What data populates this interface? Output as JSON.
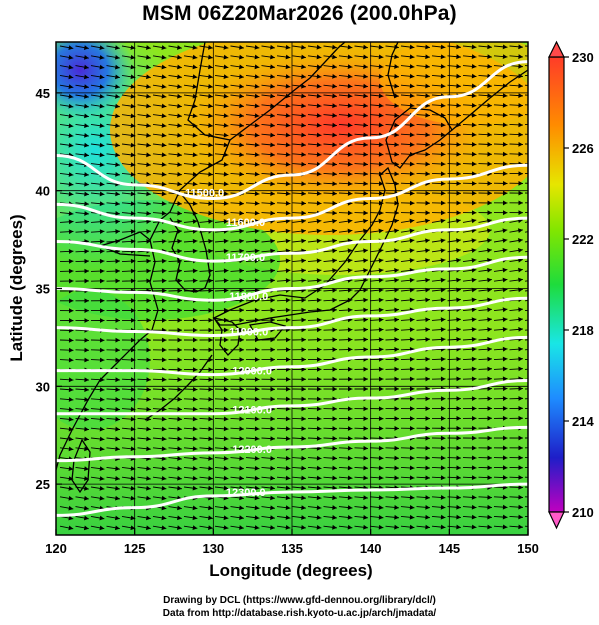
{
  "title": "MSM 06Z20Mar2026 (200.0hPa)",
  "xlabel": "Longitude (degrees)",
  "ylabel": "Latitude  (degrees)",
  "credit_line1": "Drawing by DCL (https://www.gfd-dennou.org/library/dcl/)",
  "credit_line2": "Data from http://database.rish.kyoto-u.ac.jp/arch/jmadata/",
  "map": {
    "lon_range": [
      120,
      150
    ],
    "lat_range": [
      22.4,
      47.6
    ],
    "x_ticks": [
      "120",
      "125",
      "130",
      "135",
      "140",
      "145",
      "150"
    ],
    "y_ticks": [
      "25",
      "30",
      "35",
      "40",
      "45"
    ],
    "variables": [
      "temperature (shaded)",
      "geopotential height (white contours)",
      "wind (arrows)"
    ],
    "colorbar": {
      "min": 210,
      "max": 230,
      "tick_labels": [
        "230",
        "226",
        "222",
        "218",
        "214",
        "210"
      ],
      "colors": [
        "#c000c0",
        "#1e1ec8",
        "#1e8cff",
        "#19e6e6",
        "#1edc3c",
        "#82e600",
        "#e6e600",
        "#ff8c00",
        "#ff3c28"
      ]
    },
    "contour_labels": [
      {
        "text": "11500.0",
        "lon": 128.2,
        "lat": 39.7
      },
      {
        "text": "11600.0",
        "lon": 130.8,
        "lat": 38.2
      },
      {
        "text": "11700.0",
        "lon": 130.8,
        "lat": 36.4
      },
      {
        "text": "11800.0",
        "lon": 131.0,
        "lat": 34.4
      },
      {
        "text": "11900.0",
        "lon": 131.0,
        "lat": 32.6
      },
      {
        "text": "12000.0",
        "lon": 131.2,
        "lat": 30.6
      },
      {
        "text": "12100.0",
        "lon": 131.2,
        "lat": 28.6
      },
      {
        "text": "12200.0",
        "lon": 131.2,
        "lat": 26.6
      },
      {
        "text": "12300.0",
        "lon": 130.8,
        "lat": 24.4
      }
    ]
  }
}
